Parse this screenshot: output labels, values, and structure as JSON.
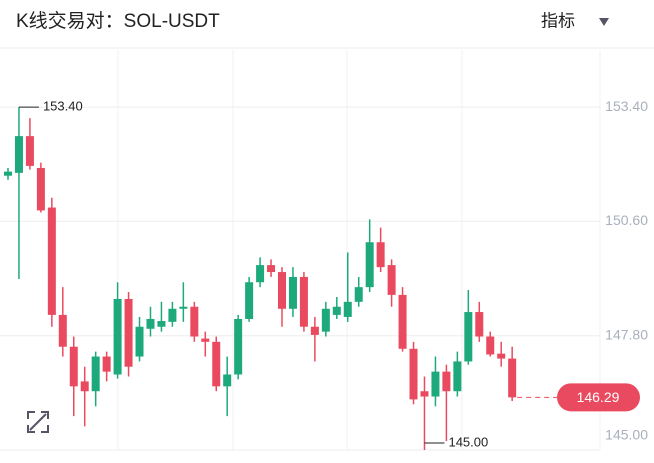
{
  "header": {
    "title": "K线交易对：SOL-USDT",
    "indicator_button": "指标"
  },
  "chart_data": {
    "type": "candlestick",
    "open": [
      151.72,
      151.79,
      152.69,
      151.91,
      150.94,
      148.31,
      147.53,
      146.68,
      146.44,
      147.29,
      146.85,
      148.7,
      147.29,
      147.97,
      148.02,
      148.14,
      148.46,
      148.51,
      147.73,
      147.65,
      146.56,
      146.85,
      148.21,
      149.11,
      149.53,
      149.36,
      148.46,
      149.24,
      148.02,
      147.9,
      148.31,
      148.26,
      148.63,
      148.99,
      150.09,
      149.53,
      148.8,
      147.48,
      146.44,
      146.31,
      146.92,
      146.44,
      147.17,
      148.38,
      147.78,
      147.36,
      147.24
    ],
    "high": [
      151.91,
      153.4,
      153.13,
      152.04,
      151.18,
      148.99,
      147.78,
      147.04,
      147.41,
      147.41,
      149.11,
      148.87,
      148.26,
      148.51,
      148.63,
      148.63,
      149.11,
      148.63,
      147.9,
      147.78,
      147.29,
      148.31,
      149.24,
      149.72,
      149.67,
      149.48,
      149.48,
      149.36,
      148.26,
      148.63,
      148.75,
      149.84,
      149.24,
      150.65,
      150.45,
      149.67,
      148.99,
      147.65,
      146.8,
      147.29,
      147.09,
      147.41,
      148.92,
      148.63,
      147.9,
      147.65,
      147.53
    ],
    "low": [
      151.62,
      149.19,
      151.87,
      150.82,
      148.02,
      147.29,
      145.83,
      145.58,
      146.07,
      146.68,
      146.75,
      146.8,
      147.17,
      147.78,
      147.9,
      148.02,
      148.14,
      147.65,
      147.29,
      146.44,
      145.83,
      146.73,
      148.14,
      148.99,
      149.24,
      148.02,
      148.26,
      147.9,
      147.17,
      147.78,
      148.21,
      148.14,
      148.51,
      148.87,
      149.36,
      148.51,
      147.41,
      146.12,
      145.0,
      146.07,
      145.22,
      146.31,
      147.09,
      147.65,
      147.29,
      147.04,
      146.2
    ],
    "close": [
      151.82,
      152.69,
      151.96,
      150.87,
      148.31,
      147.53,
      146.56,
      146.44,
      147.29,
      146.92,
      148.7,
      147.04,
      148.02,
      148.21,
      148.16,
      148.46,
      148.51,
      147.78,
      147.65,
      146.56,
      146.85,
      148.21,
      149.11,
      149.53,
      149.36,
      148.46,
      149.24,
      148.02,
      147.82,
      148.46,
      148.51,
      148.63,
      148.99,
      150.09,
      149.48,
      148.8,
      147.48,
      146.24,
      146.31,
      146.92,
      146.44,
      147.17,
      148.38,
      147.78,
      147.34,
      147.24,
      146.29
    ],
    "up_color": "#1ea97c",
    "down_color": "#ea4a5f",
    "ylim": [
      145,
      154.8
    ],
    "yticks": [
      {
        "value": 145,
        "label": "145.00"
      },
      {
        "value": 147.8,
        "label": "147.80"
      },
      {
        "value": 150.6,
        "label": "150.60"
      },
      {
        "value": 153.4,
        "label": "153.40"
      }
    ],
    "grid": true,
    "max_label": "153.40",
    "min_label": "145.00",
    "last_price_label": "146.29"
  }
}
